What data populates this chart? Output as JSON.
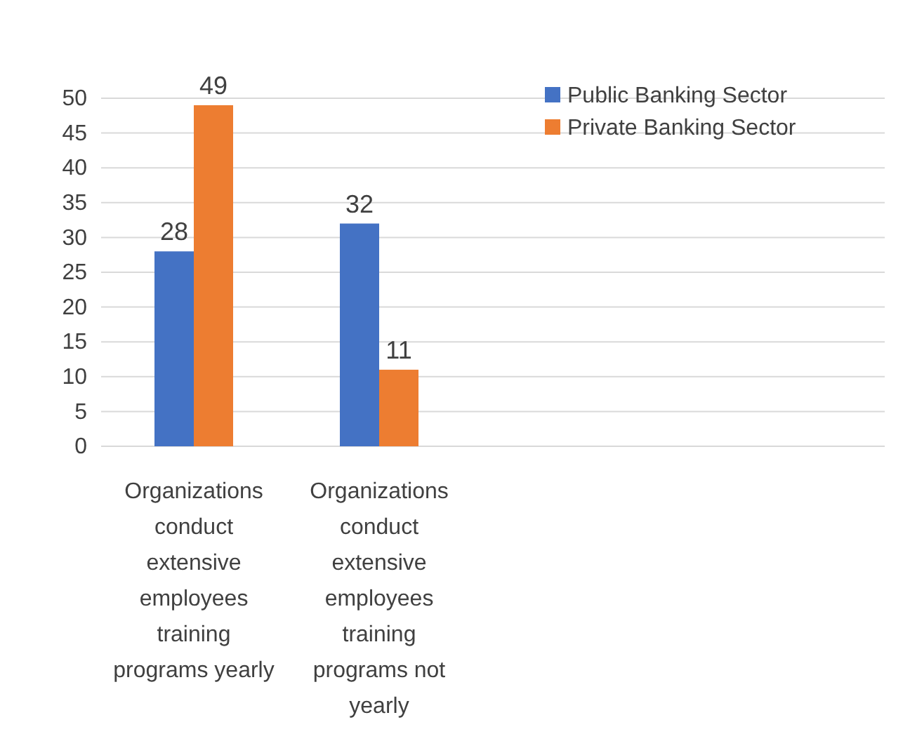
{
  "chart_data": {
    "type": "bar",
    "categories": [
      "Organizations conduct extensive employees training programs yearly",
      "Organizations conduct extensive employees training programs not yearly"
    ],
    "series": [
      {
        "name": "Public Banking Sector",
        "color": "#4472c4",
        "values": [
          28,
          32
        ]
      },
      {
        "name": "Private Banking Sector",
        "color": "#ed7d31",
        "values": [
          49,
          11
        ]
      }
    ],
    "ylim": [
      0,
      50
    ],
    "yticks": [
      0,
      5,
      10,
      15,
      20,
      25,
      30,
      35,
      40,
      45,
      50
    ],
    "grid": "y",
    "legend": "top right",
    "data_labels": true
  }
}
